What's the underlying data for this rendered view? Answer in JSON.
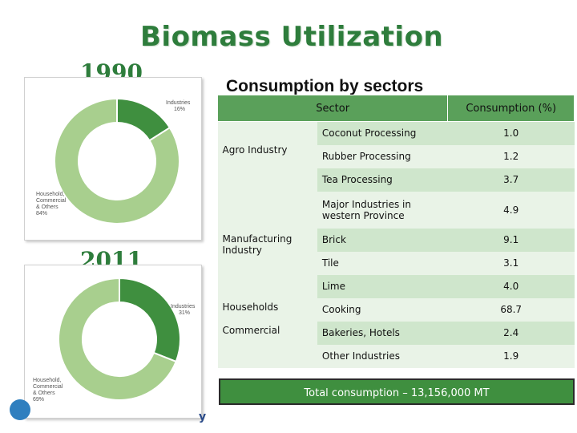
{
  "title": "Biomass Utilization",
  "years": {
    "first": "1990",
    "second": "2011"
  },
  "subtitle": "Consumption by sectors",
  "charts": {
    "1990": {
      "industries_label": "Industries",
      "industries_pct": "16%",
      "industries_value": 16,
      "household_lines": [
        "Household,",
        "Commercial",
        "& Others",
        "84%"
      ],
      "household_value": 84
    },
    "2011": {
      "industries_label": "Industries",
      "industries_pct": "31%",
      "industries_value": 31,
      "household_lines": [
        "Household,",
        "Commercial",
        "& Others",
        "69%"
      ],
      "household_value": 69
    },
    "colors": {
      "industries": "#3f8f3f",
      "household": "#a8cf8e"
    }
  },
  "table": {
    "headers": [
      "Sector",
      "Consumption (%)"
    ],
    "groups": [
      {
        "category": "Agro Industry",
        "rows": [
          {
            "sub": "Coconut Processing",
            "value": "1.0"
          },
          {
            "sub": "Rubber Processing",
            "value": "1.2"
          },
          {
            "sub": "Tea Processing",
            "value": "3.7"
          }
        ]
      },
      {
        "category": "Manufacturing Industry",
        "rows": [
          {
            "sub": "Major Industries in western Province",
            "value": "4.9"
          },
          {
            "sub": "Brick",
            "value": "9.1"
          },
          {
            "sub": "Tile",
            "value": "3.1"
          },
          {
            "sub": "Lime",
            "value": "4.0"
          }
        ]
      },
      {
        "category": "Households",
        "rows": [
          {
            "sub": "Cooking",
            "value": "68.7"
          }
        ]
      },
      {
        "category": "Commercial",
        "rows": [
          {
            "sub": "Bakeries, Hotels",
            "value": "2.4"
          },
          {
            "sub": "Other Industries",
            "value": "1.9"
          }
        ]
      }
    ]
  },
  "total": "Total consumption – 13,156,000 MT",
  "footer_fragment": "y"
}
